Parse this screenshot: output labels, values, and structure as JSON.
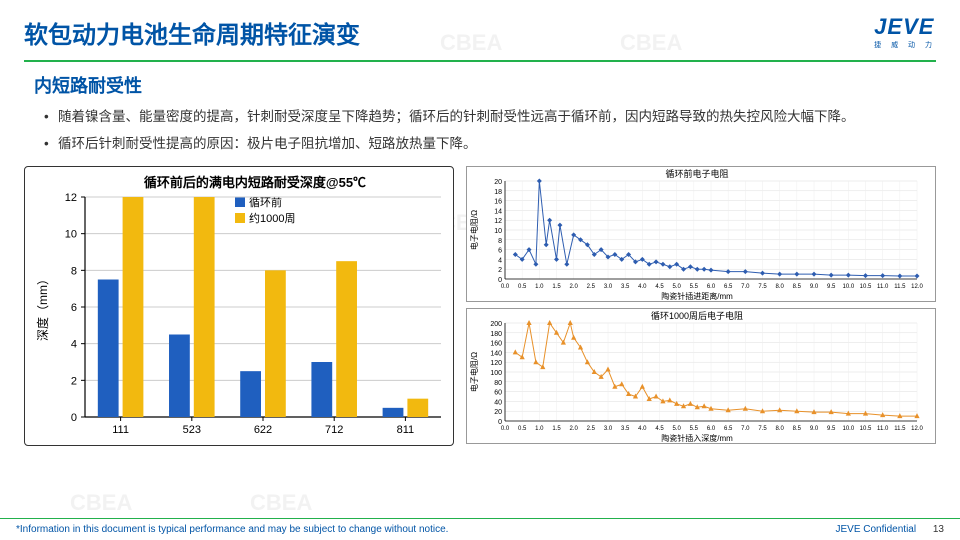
{
  "header": {
    "title": "软包动力电池生命周期特征演变",
    "logo": "JEVE",
    "logo_sub": "捷 威 动 力"
  },
  "subtitle": "内短路耐受性",
  "bullets": [
    "随着镍含量、能量密度的提高，针刺耐受深度呈下降趋势；循环后的针刺耐受性远高于循环前，因内短路导致的热失控风险大幅下降。",
    "循环后针刺耐受性提高的原因：极片电子阻抗增加、短路放热量下降。"
  ],
  "bar_chart": {
    "type": "bar",
    "title": "循环前后的满电内短路耐受深度@55℃",
    "title_fontsize": 13,
    "ylabel": "深度（mm）",
    "legend": [
      "循环前",
      "约1000周"
    ],
    "categories": [
      "111",
      "523",
      "622",
      "712",
      "811"
    ],
    "series1": [
      7.5,
      4.5,
      2.5,
      3.0,
      0.5
    ],
    "series2": [
      12.0,
      12.0,
      8.0,
      8.5,
      1.0
    ],
    "colors": [
      "#1f5fbf",
      "#f2b90f"
    ],
    "ylim": [
      0,
      12
    ],
    "ytick_step": 2,
    "background": "#ffffff",
    "grid_color": "#cccccc",
    "bar_width": 0.32
  },
  "line_chart_top": {
    "type": "scatter-line",
    "title": "循环前电子电阻",
    "xlabel": "陶瓷针插进距离/mm",
    "ylabel": "电子电阻/Ω",
    "ylim": [
      0,
      20
    ],
    "ytick_step": 2,
    "xlim": [
      0,
      12
    ],
    "xtick_step": 0.5,
    "color": "#2e5db0",
    "marker": "diamond",
    "data": [
      [
        0.3,
        5
      ],
      [
        0.5,
        4
      ],
      [
        0.7,
        6
      ],
      [
        0.9,
        3
      ],
      [
        1.0,
        20
      ],
      [
        1.2,
        7
      ],
      [
        1.3,
        12
      ],
      [
        1.5,
        4
      ],
      [
        1.6,
        11
      ],
      [
        1.8,
        3
      ],
      [
        2.0,
        9
      ],
      [
        2.2,
        8
      ],
      [
        2.4,
        7
      ],
      [
        2.6,
        5
      ],
      [
        2.8,
        6
      ],
      [
        3.0,
        4.5
      ],
      [
        3.2,
        5
      ],
      [
        3.4,
        4
      ],
      [
        3.6,
        5
      ],
      [
        3.8,
        3.5
      ],
      [
        4.0,
        4
      ],
      [
        4.2,
        3
      ],
      [
        4.4,
        3.5
      ],
      [
        4.6,
        3
      ],
      [
        4.8,
        2.5
      ],
      [
        5.0,
        3
      ],
      [
        5.2,
        2
      ],
      [
        5.4,
        2.5
      ],
      [
        5.6,
        2
      ],
      [
        5.8,
        2
      ],
      [
        6.0,
        1.8
      ],
      [
        6.5,
        1.5
      ],
      [
        7.0,
        1.5
      ],
      [
        7.5,
        1.2
      ],
      [
        8.0,
        1
      ],
      [
        8.5,
        1
      ],
      [
        9.0,
        1
      ],
      [
        9.5,
        0.8
      ],
      [
        10,
        0.8
      ],
      [
        10.5,
        0.7
      ],
      [
        11,
        0.7
      ],
      [
        11.5,
        0.6
      ],
      [
        12,
        0.6
      ]
    ]
  },
  "line_chart_bottom": {
    "type": "scatter-line",
    "title": "循环1000周后电子电阻",
    "xlabel": "陶瓷针插入深度/mm",
    "ylabel": "电子电阻/Ω",
    "ylim": [
      0,
      200
    ],
    "ytick_step": 20,
    "xlim": [
      0,
      12
    ],
    "xtick_step": 0.5,
    "color": "#e8912a",
    "marker": "triangle",
    "data": [
      [
        0.3,
        140
      ],
      [
        0.5,
        130
      ],
      [
        0.7,
        200
      ],
      [
        0.9,
        120
      ],
      [
        1.1,
        110
      ],
      [
        1.3,
        200
      ],
      [
        1.5,
        180
      ],
      [
        1.7,
        160
      ],
      [
        1.9,
        200
      ],
      [
        2.0,
        170
      ],
      [
        2.2,
        150
      ],
      [
        2.4,
        120
      ],
      [
        2.6,
        100
      ],
      [
        2.8,
        90
      ],
      [
        3.0,
        105
      ],
      [
        3.2,
        70
      ],
      [
        3.4,
        75
      ],
      [
        3.6,
        55
      ],
      [
        3.8,
        50
      ],
      [
        4.0,
        70
      ],
      [
        4.2,
        45
      ],
      [
        4.4,
        50
      ],
      [
        4.6,
        40
      ],
      [
        4.8,
        42
      ],
      [
        5.0,
        35
      ],
      [
        5.2,
        30
      ],
      [
        5.4,
        35
      ],
      [
        5.6,
        28
      ],
      [
        5.8,
        30
      ],
      [
        6.0,
        25
      ],
      [
        6.5,
        22
      ],
      [
        7.0,
        25
      ],
      [
        7.5,
        20
      ],
      [
        8.0,
        22
      ],
      [
        8.5,
        20
      ],
      [
        9.0,
        18
      ],
      [
        9.5,
        18
      ],
      [
        10,
        15
      ],
      [
        10.5,
        15
      ],
      [
        11,
        12
      ],
      [
        11.5,
        10
      ],
      [
        12,
        10
      ]
    ]
  },
  "footer": {
    "disclaimer": "*Information in this document is typical performance and may be subject to change without notice.",
    "confidential": "JEVE Confidential",
    "page": "13"
  },
  "watermarks": [
    "CBEA"
  ]
}
